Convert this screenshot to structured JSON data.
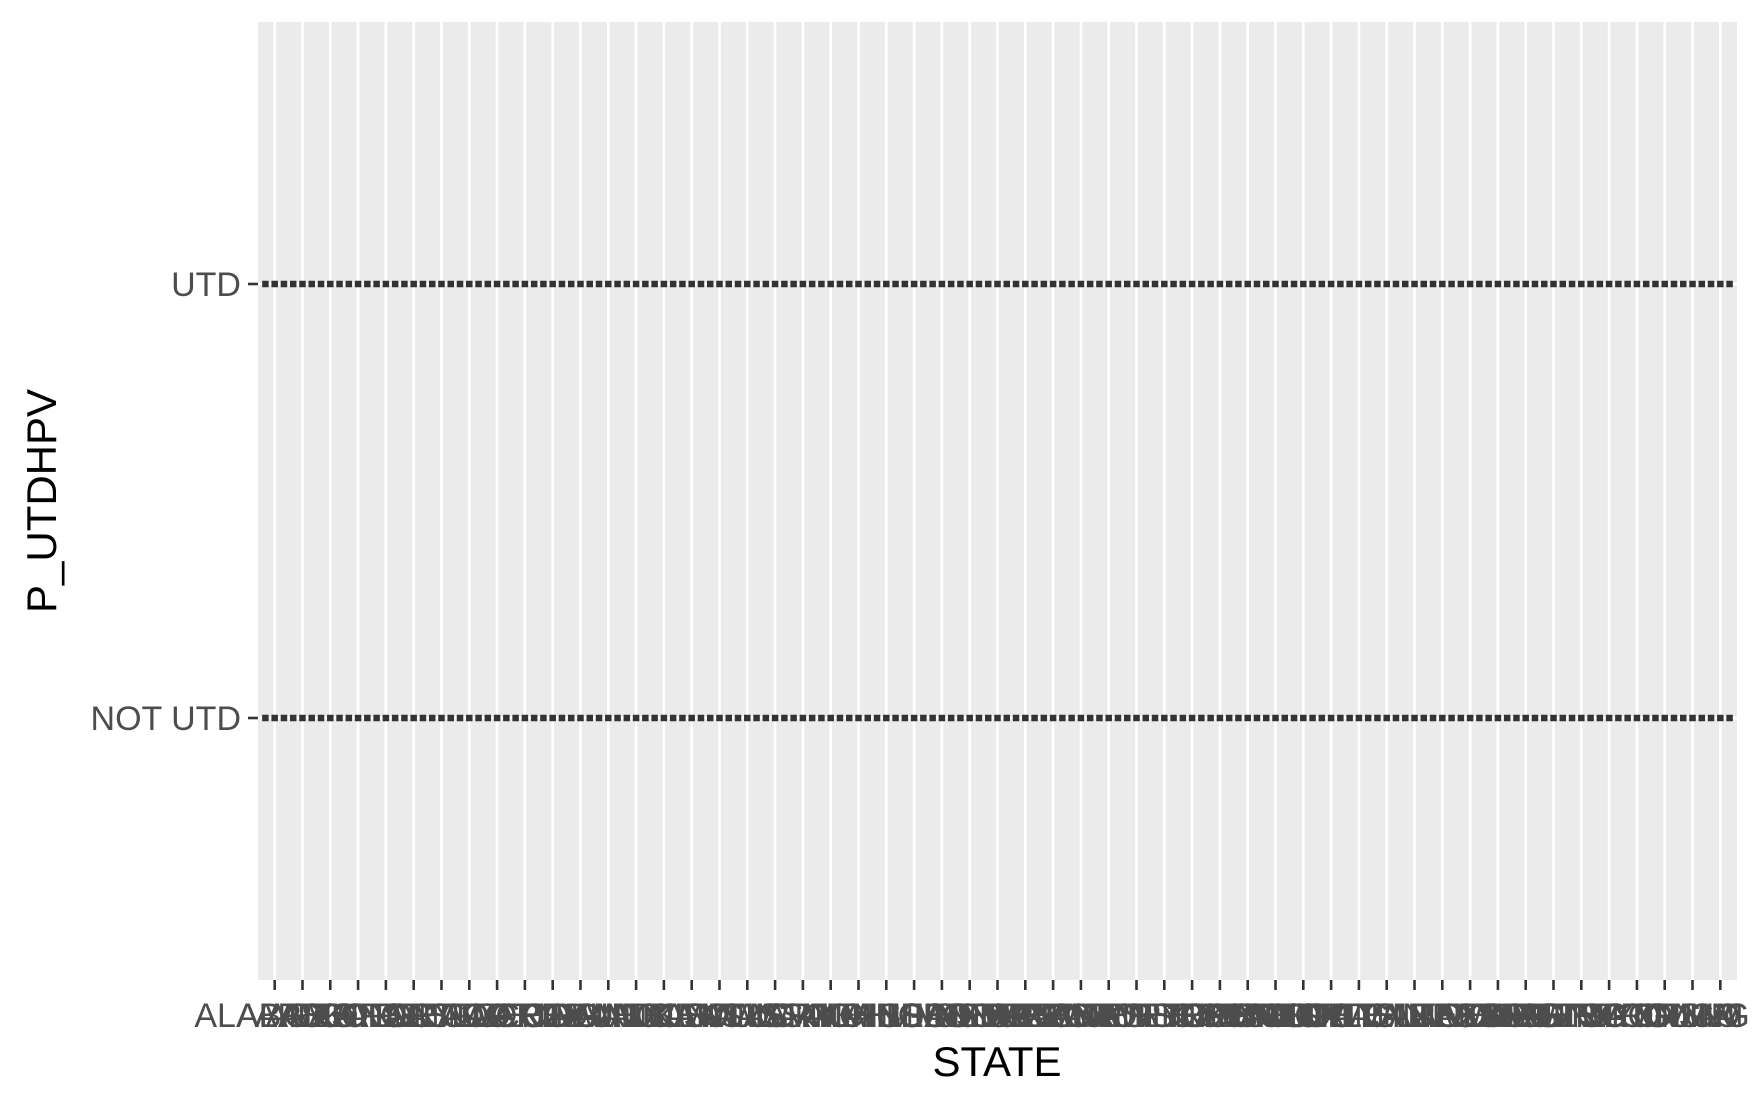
{
  "chart_data": {
    "type": "scatter",
    "title": "",
    "xlabel": "STATE",
    "ylabel": "P_UTDHPV",
    "grid": true,
    "legend": "none",
    "y_categories": [
      "NOT UTD",
      "UTD"
    ],
    "categories": [
      "ALABAMA",
      "ALASKA",
      "ARIZONA",
      "ARKANSAS",
      "CALIFORNIA",
      "COLORADO",
      "CONNECTICUT",
      "DELAWARE",
      "DISTRICT OF COLUMBIA",
      "FLORIDA",
      "GEORGIA",
      "HAWAII",
      "IDAHO",
      "ILLINOIS",
      "INDIANA",
      "IOWA",
      "KANSAS",
      "KENTUCKY",
      "LOUISIANA",
      "MAINE",
      "MARYLAND",
      "MASSACHUSETTS",
      "MICHIGAN",
      "MINNESOTA",
      "MISSISSIPPI",
      "MISSOURI",
      "MONTANA",
      "NEBRASKA",
      "NEVADA",
      "NEW HAMPSHIRE",
      "NEW JERSEY",
      "NEW MEXICO",
      "NEW YORK",
      "NORTH CAROLINA",
      "NORTH DAKOTA",
      "OHIO",
      "OKLAHOMA",
      "OREGON",
      "PENNSYLVANIA",
      "RHODE ISLAND",
      "SOUTH CAROLINA",
      "SOUTH DAKOTA",
      "TENNESSEE",
      "TEXAS",
      "UTAH",
      "VERMONT",
      "VIRGINIA",
      "WASHINGTON",
      "WEST VIRGINIA",
      "WISCONSIN",
      "WYOMING",
      "GUAM",
      "PUERTO RICO"
    ],
    "series": [
      {
        "y": "UTD",
        "present_for_all": true
      },
      {
        "y": "NOT UTD",
        "present_for_all": true
      }
    ],
    "colors": {
      "panel": "#EBEBEB",
      "grid": "#FFFFFF",
      "points": "#333333",
      "tick_text": "#4D4D4D",
      "title_text": "#000000"
    }
  }
}
